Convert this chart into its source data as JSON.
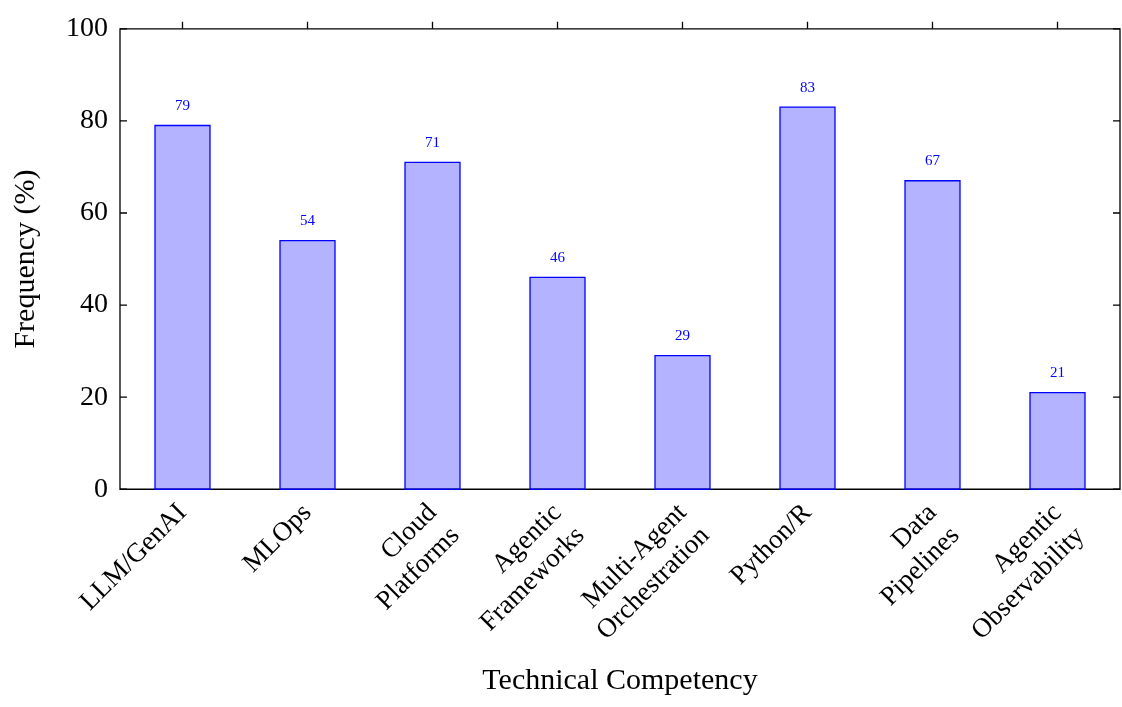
{
  "chart_data": {
    "type": "bar",
    "xlabel": "Technical Competency",
    "ylabel": "Frequency (%)",
    "categories": [
      "LLM/GenAI",
      "MLOps",
      "Cloud Platforms",
      "Agentic Frameworks",
      "Multi-Agent Orchestration",
      "Python/R",
      "Data Pipelines",
      "Agentic Observability"
    ],
    "values": [
      79,
      54,
      71,
      46,
      29,
      83,
      67,
      21
    ],
    "color": "#b3b3ff",
    "ylim": [
      0,
      100
    ],
    "yticks": [
      0,
      20,
      40,
      60,
      80,
      100
    ],
    "grid": false,
    "legend": false,
    "data_labels": true
  }
}
